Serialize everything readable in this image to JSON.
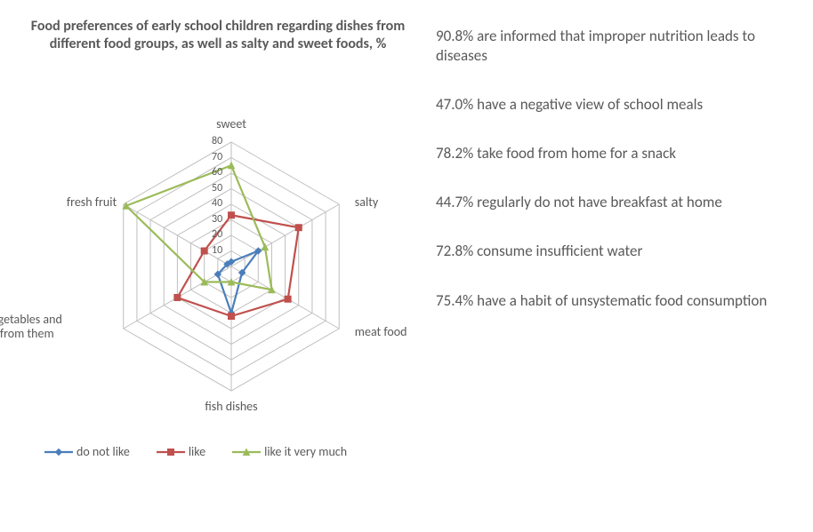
{
  "chart": {
    "type": "radar",
    "title": "Food preferences of early school children regarding dishes from different food groups, as well as salty and sweet foods, %",
    "title_fontsize": 16,
    "title_fontweight": "bold",
    "axes": [
      "sweet",
      "salty",
      "meat food",
      "fish dishes",
      "fresh vegetables and salads from them",
      "fresh fruit"
    ],
    "axis_fontsize": 14,
    "max": 80,
    "tick_step": 10,
    "ticks": [
      10,
      20,
      30,
      40,
      50,
      60,
      70,
      80
    ],
    "tick_fontsize": 12,
    "grid_color": "#bfbfbf",
    "grid_width": 1,
    "background_color": "#ffffff",
    "text_color": "#595959",
    "series": [
      {
        "name": "do not like",
        "color": "#4a7ebb",
        "marker": "diamond",
        "line_width": 2.2,
        "marker_size": 7,
        "values": [
          3,
          20,
          8,
          30,
          10,
          3
        ]
      },
      {
        "name": "like",
        "color": "#c0504d",
        "marker": "square",
        "line_width": 2.2,
        "marker_size": 7,
        "values": [
          33,
          50,
          42,
          32,
          40,
          20
        ]
      },
      {
        "name": "like it very much",
        "color": "#9bbb59",
        "marker": "triangle",
        "line_width": 2.2,
        "marker_size": 7,
        "values": [
          65,
          25,
          30,
          10,
          20,
          78
        ]
      }
    ],
    "legend": {
      "position": "bottom",
      "fontsize": 14
    }
  },
  "stats": [
    "90.8% are informed that improper nutrition leads to diseases",
    "47.0% have a negative view of school meals",
    "78.2% take food from home for a snack",
    "44.7% regularly do not have breakfast at home",
    "72.8% consume insufficient water",
    "75.4% have a habit of unsystematic food consumption"
  ],
  "stats_fontsize": 17
}
